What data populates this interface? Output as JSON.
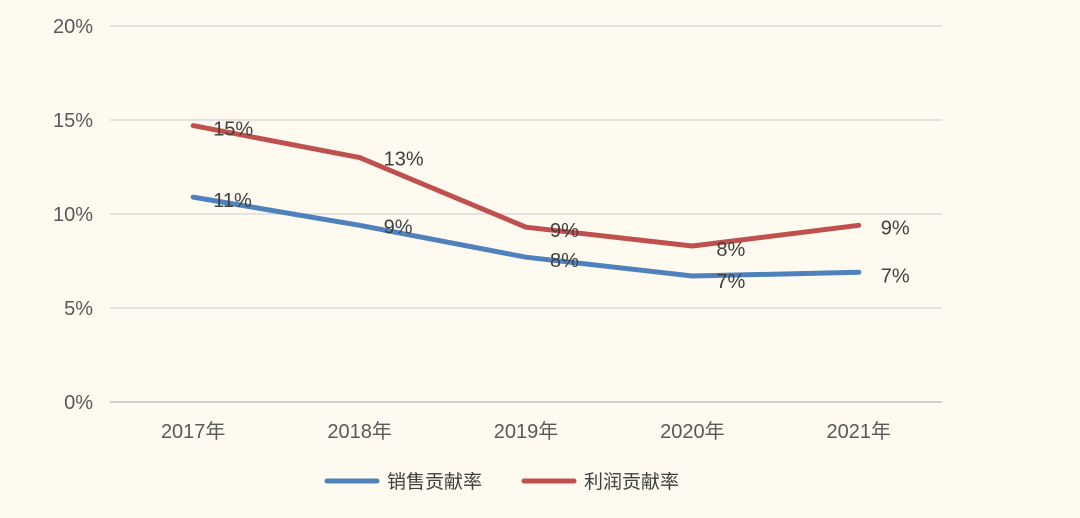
{
  "chart_data": {
    "type": "line",
    "title": "",
    "xlabel": "",
    "ylabel": "",
    "categories": [
      "2017年",
      "2018年",
      "2019年",
      "2020年",
      "2021年"
    ],
    "y_tick_labels": [
      "0%",
      "5%",
      "10%",
      "15%",
      "20%"
    ],
    "y_ticks": [
      0,
      5,
      10,
      15,
      20
    ],
    "ylim": [
      0,
      20
    ],
    "grid": true,
    "legend_position": "bottom",
    "series": [
      {
        "name": "销售贡献率",
        "color": "#4f81bd",
        "values": [
          10.9,
          9.4,
          7.7,
          6.7,
          6.9
        ],
        "labels": [
          "11%",
          "9%",
          "8%",
          "7%",
          "7%"
        ]
      },
      {
        "name": "利润贡献率",
        "color": "#c0504d",
        "values": [
          14.7,
          13.0,
          9.3,
          8.3,
          9.4
        ],
        "labels": [
          "15%",
          "13%",
          "9%",
          "8%",
          "9%"
        ]
      }
    ]
  }
}
